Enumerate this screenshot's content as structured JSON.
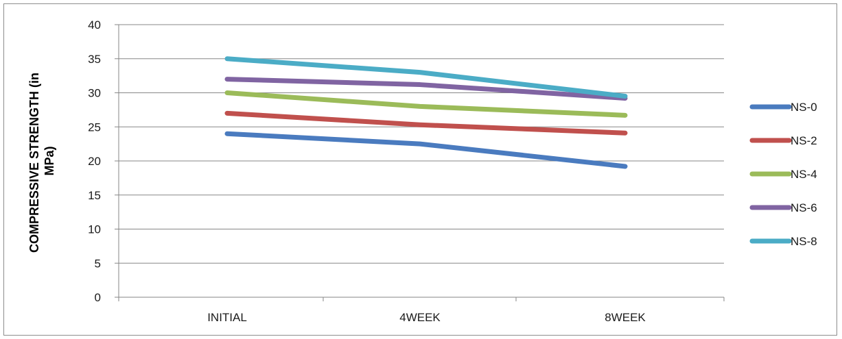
{
  "chart_data": {
    "type": "line",
    "title": "",
    "xlabel": "",
    "ylabel": "COMPRESSIVE STRENGTH (in MPa)",
    "ylabel_lines": [
      "COMPRESSIVE STRENGTH (in",
      "MPa)"
    ],
    "categories": [
      "INITIAL",
      "4WEEK",
      "8WEEK"
    ],
    "ylim": [
      0,
      40
    ],
    "yticks": [
      0,
      5,
      10,
      15,
      20,
      25,
      30,
      35,
      40
    ],
    "grid": true,
    "legend_position": "right",
    "series": [
      {
        "name": "NS-0",
        "color": "#4a7bbf",
        "values": [
          24,
          22.5,
          19.2
        ]
      },
      {
        "name": "NS-2",
        "color": "#c0504d",
        "values": [
          27,
          25.3,
          24.1
        ]
      },
      {
        "name": "NS-4",
        "color": "#9bbb59",
        "values": [
          30,
          28,
          26.7
        ]
      },
      {
        "name": "NS-6",
        "color": "#8064a2",
        "values": [
          32,
          31.2,
          29.2
        ]
      },
      {
        "name": "NS-8",
        "color": "#4bacc6",
        "values": [
          35,
          33,
          29.5
        ]
      }
    ]
  }
}
